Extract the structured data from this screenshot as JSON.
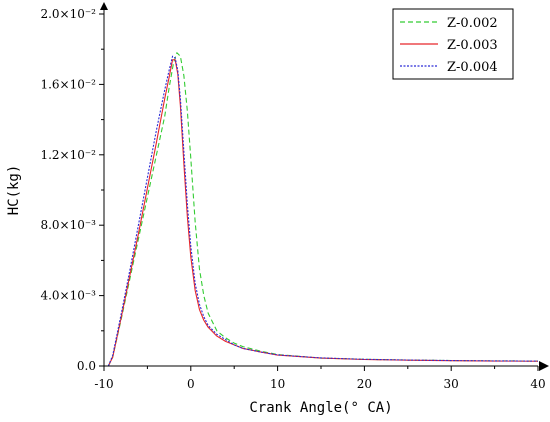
{
  "chart_data": {
    "type": "line",
    "title": "",
    "xlabel": "Crank Angle(° CA)",
    "ylabel": "HC(kg)",
    "xlim": [
      -10,
      40
    ],
    "ylim": [
      0,
      0.02
    ],
    "x_ticks": [
      {
        "value": -10,
        "label": "-10"
      },
      {
        "value": 0,
        "label": "0"
      },
      {
        "value": 10,
        "label": "10"
      },
      {
        "value": 20,
        "label": "20"
      },
      {
        "value": 30,
        "label": "30"
      },
      {
        "value": 40,
        "label": "40"
      }
    ],
    "y_ticks": [
      {
        "value": 0,
        "label": "0.0"
      },
      {
        "value": 0.004,
        "label": "4.0×10⁻³"
      },
      {
        "value": 0.008,
        "label": "8.0×10⁻³"
      },
      {
        "value": 0.012,
        "label": "1.2×10⁻²"
      },
      {
        "value": 0.016,
        "label": "1.6×10⁻²"
      },
      {
        "value": 0.02,
        "label": "2.0×10⁻²"
      }
    ],
    "grid": false,
    "legend_position": "top-right",
    "series": [
      {
        "name": "Z-0.002",
        "color": "#33cc33",
        "dash": "dashed",
        "x": [
          -9.5,
          -9,
          -8,
          -7,
          -6,
          -5,
          -4,
          -3,
          -2.5,
          -2,
          -1.6,
          -1.2,
          -0.8,
          -0.4,
          0,
          0.5,
          1,
          1.5,
          2,
          3,
          4,
          5,
          6,
          8,
          10,
          15,
          20,
          25,
          30,
          35,
          40
        ],
        "y": [
          0,
          0.0005,
          0.0027,
          0.005,
          0.0073,
          0.0096,
          0.0119,
          0.0142,
          0.0158,
          0.0172,
          0.0178,
          0.0176,
          0.0165,
          0.0145,
          0.0118,
          0.0082,
          0.0055,
          0.004,
          0.003,
          0.002,
          0.0016,
          0.0013,
          0.0011,
          0.00085,
          0.00065,
          0.00045,
          0.00038,
          0.00034,
          0.00031,
          0.00029,
          0.00028
        ]
      },
      {
        "name": "Z-0.003",
        "color": "#e8262a",
        "dash": "solid",
        "x": [
          -9.5,
          -9,
          -8,
          -7,
          -6,
          -5,
          -4,
          -3,
          -2.5,
          -2.1,
          -1.8,
          -1.5,
          -1.2,
          -0.8,
          -0.4,
          0,
          0.5,
          1,
          1.5,
          2,
          3,
          4,
          5,
          6,
          8,
          10,
          15,
          20,
          25,
          30,
          35,
          40
        ],
        "y": [
          0,
          0.0005,
          0.0028,
          0.0052,
          0.0076,
          0.0101,
          0.0126,
          0.0152,
          0.0164,
          0.0174,
          0.0174,
          0.0166,
          0.0148,
          0.0115,
          0.0085,
          0.0062,
          0.0043,
          0.0032,
          0.0026,
          0.0022,
          0.0017,
          0.0014,
          0.0012,
          0.001,
          0.0008,
          0.00062,
          0.00045,
          0.00037,
          0.00033,
          0.0003,
          0.00028,
          0.00027
        ]
      },
      {
        "name": "Z-0.004",
        "color": "#2b2bd6",
        "dash": "dotted",
        "x": [
          -9.5,
          -9,
          -8,
          -7,
          -6,
          -5,
          -4,
          -3,
          -2.5,
          -2.1,
          -1.8,
          -1.5,
          -1.2,
          -0.8,
          -0.4,
          0,
          0.5,
          1,
          1.5,
          2,
          3,
          4,
          5,
          6,
          8,
          10,
          15,
          20,
          25,
          30,
          35,
          40
        ],
        "y": [
          0,
          0.0006,
          0.003,
          0.0055,
          0.0081,
          0.0107,
          0.0133,
          0.0157,
          0.0168,
          0.0176,
          0.0175,
          0.0168,
          0.0152,
          0.0122,
          0.0092,
          0.0068,
          0.0047,
          0.0035,
          0.0028,
          0.0023,
          0.0018,
          0.0015,
          0.0012,
          0.001,
          0.0008,
          0.00063,
          0.00046,
          0.00038,
          0.00034,
          0.00031,
          0.00029,
          0.00028
        ]
      }
    ]
  }
}
